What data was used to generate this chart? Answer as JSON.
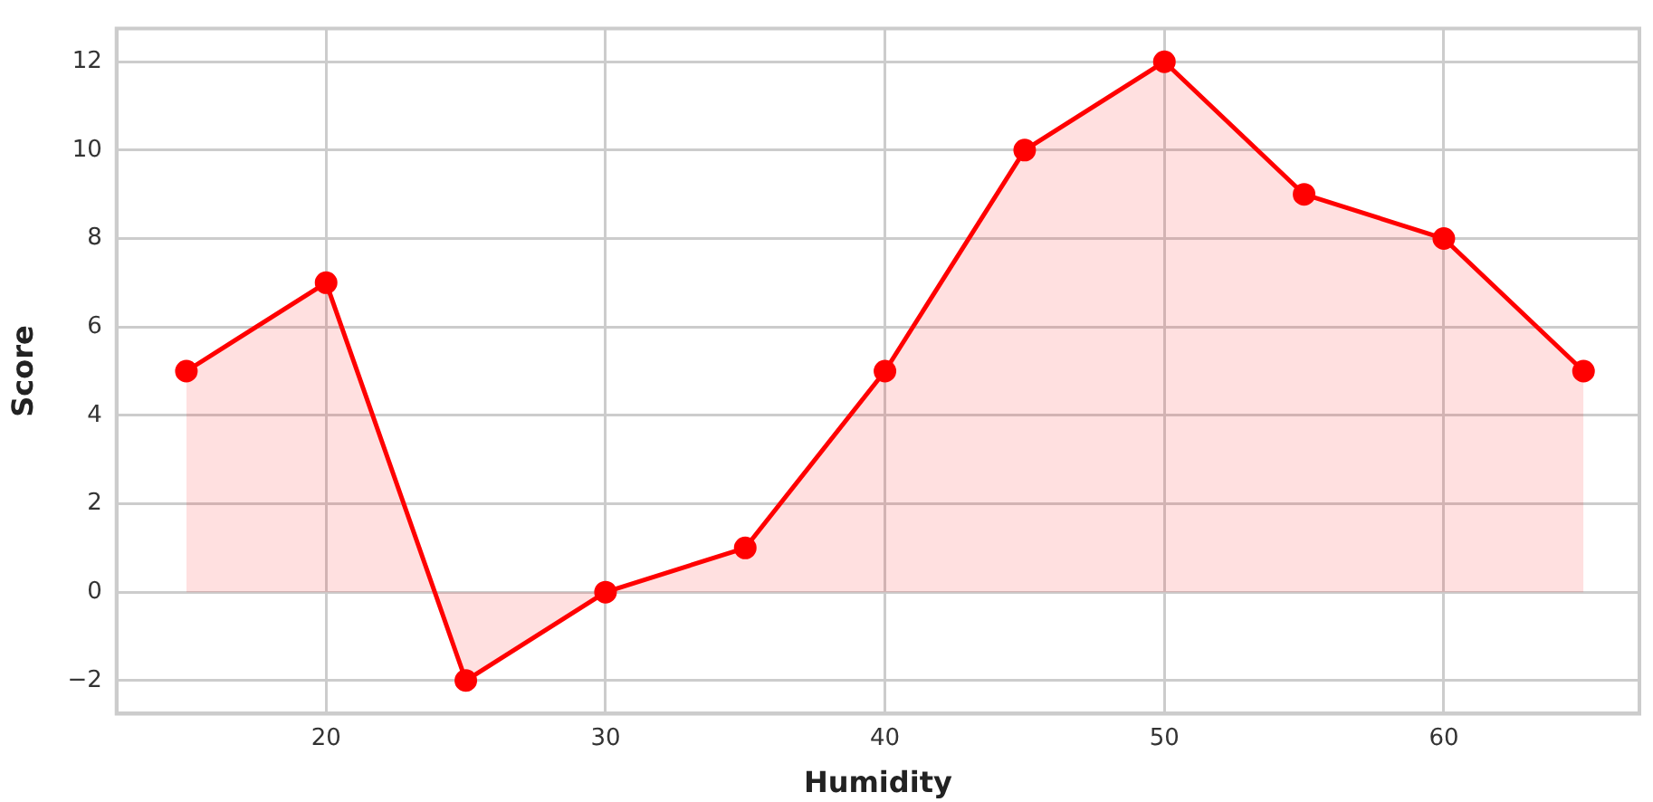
{
  "chart_data": {
    "type": "area",
    "xlabel": "Humidity",
    "ylabel": "Score",
    "x": [
      15,
      20,
      25,
      30,
      35,
      40,
      45,
      50,
      55,
      60,
      65
    ],
    "series": [
      {
        "color": "#ff0000",
        "values": [
          5,
          7,
          -2,
          0,
          1,
          5,
          10,
          12,
          9,
          8,
          5
        ]
      }
    ],
    "xlim": [
      12.5,
      67
    ],
    "ylim": [
      -2.75,
      12.75
    ],
    "xticks": [
      20,
      30,
      40,
      50,
      60
    ],
    "yticks": [
      -2,
      0,
      2,
      4,
      6,
      8,
      10,
      12
    ],
    "grid": true,
    "legend": false,
    "marker": "circle",
    "line_style": "solid"
  }
}
